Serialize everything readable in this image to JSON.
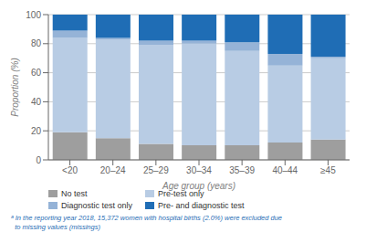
{
  "chart_data": {
    "type": "bar",
    "stacked": true,
    "categories": [
      "<20",
      "20–24",
      "25–29",
      "30–34",
      "35–39",
      "40–44",
      "≥45"
    ],
    "series": [
      {
        "name": "No test",
        "color": "#9e9e9e",
        "values": [
          19,
          15,
          11,
          10,
          10,
          12,
          14
        ]
      },
      {
        "name": "Pre-test only",
        "color": "#b8cce4",
        "values": [
          65,
          68,
          68,
          70,
          65,
          53,
          56
        ]
      },
      {
        "name": "Diagnostic test only",
        "color": "#95b3d7",
        "values": [
          5,
          1,
          3,
          2,
          6,
          8,
          1
        ]
      },
      {
        "name": "Pre- and diagnostic test",
        "color": "#1f6db5",
        "values": [
          11,
          16,
          18,
          18,
          19,
          27,
          29
        ]
      }
    ],
    "x_label": "Age group (years)",
    "y_label": "Proportion (%)",
    "ylim": [
      0,
      100
    ],
    "yticks": [
      0,
      20,
      40,
      60,
      80,
      100
    ],
    "grid": true,
    "legend": "bottom",
    "annotations": [
      "ᵃ In the reporting year 2018, 15,372 women with hospital births (2.0%) were excluded due",
      "  to missing values (missings)"
    ]
  }
}
